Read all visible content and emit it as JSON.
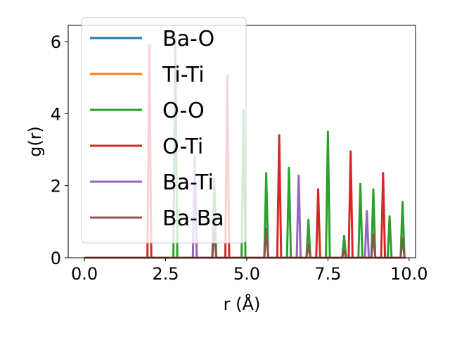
{
  "chart_data": {
    "type": "line",
    "xlabel": "r (Å)",
    "ylabel": "g(r)",
    "xlim": [
      -0.5,
      10.2
    ],
    "ylim": [
      0,
      6.45
    ],
    "xticks": [
      "0.0",
      "2.5",
      "5.0",
      "7.5",
      "10.0"
    ],
    "yticks": [
      "0",
      "2",
      "4",
      "6"
    ],
    "grid": false,
    "legend": "upper-left",
    "series": [
      {
        "name": "Ba-O",
        "color": "#1f77b4",
        "peaks": []
      },
      {
        "name": "Ti-Ti",
        "color": "#ff7f0e",
        "peaks": []
      },
      {
        "name": "O-O",
        "color": "#2ca02c",
        "peaks": [
          [
            2.8,
            6.1
          ],
          [
            4.0,
            2.2
          ],
          [
            4.9,
            4.1
          ],
          [
            5.6,
            2.35
          ],
          [
            6.3,
            2.5
          ],
          [
            6.9,
            1.05
          ],
          [
            7.5,
            3.5
          ],
          [
            8.0,
            0.6
          ],
          [
            8.5,
            2.05
          ],
          [
            8.9,
            1.9
          ],
          [
            9.4,
            1.15
          ],
          [
            9.8,
            1.55
          ]
        ]
      },
      {
        "name": "O-Ti",
        "color": "#d62728",
        "peaks": [
          [
            2.0,
            5.9
          ],
          [
            4.4,
            5.05
          ],
          [
            6.0,
            3.4
          ],
          [
            7.2,
            1.9
          ],
          [
            8.2,
            2.95
          ],
          [
            9.2,
            2.35
          ]
        ]
      },
      {
        "name": "Ba-Ti",
        "color": "#9467bd",
        "peaks": [
          [
            3.4,
            2.8
          ],
          [
            6.6,
            2.28
          ],
          [
            8.7,
            1.3
          ]
        ]
      },
      {
        "name": "Ba-Ba",
        "color": "#8c564b",
        "peaks": [
          [
            4.0,
            0.78
          ],
          [
            5.6,
            0.8
          ],
          [
            6.9,
            0.38
          ],
          [
            8.0,
            0.2
          ],
          [
            8.9,
            0.65
          ],
          [
            9.8,
            0.55
          ]
        ]
      }
    ]
  }
}
